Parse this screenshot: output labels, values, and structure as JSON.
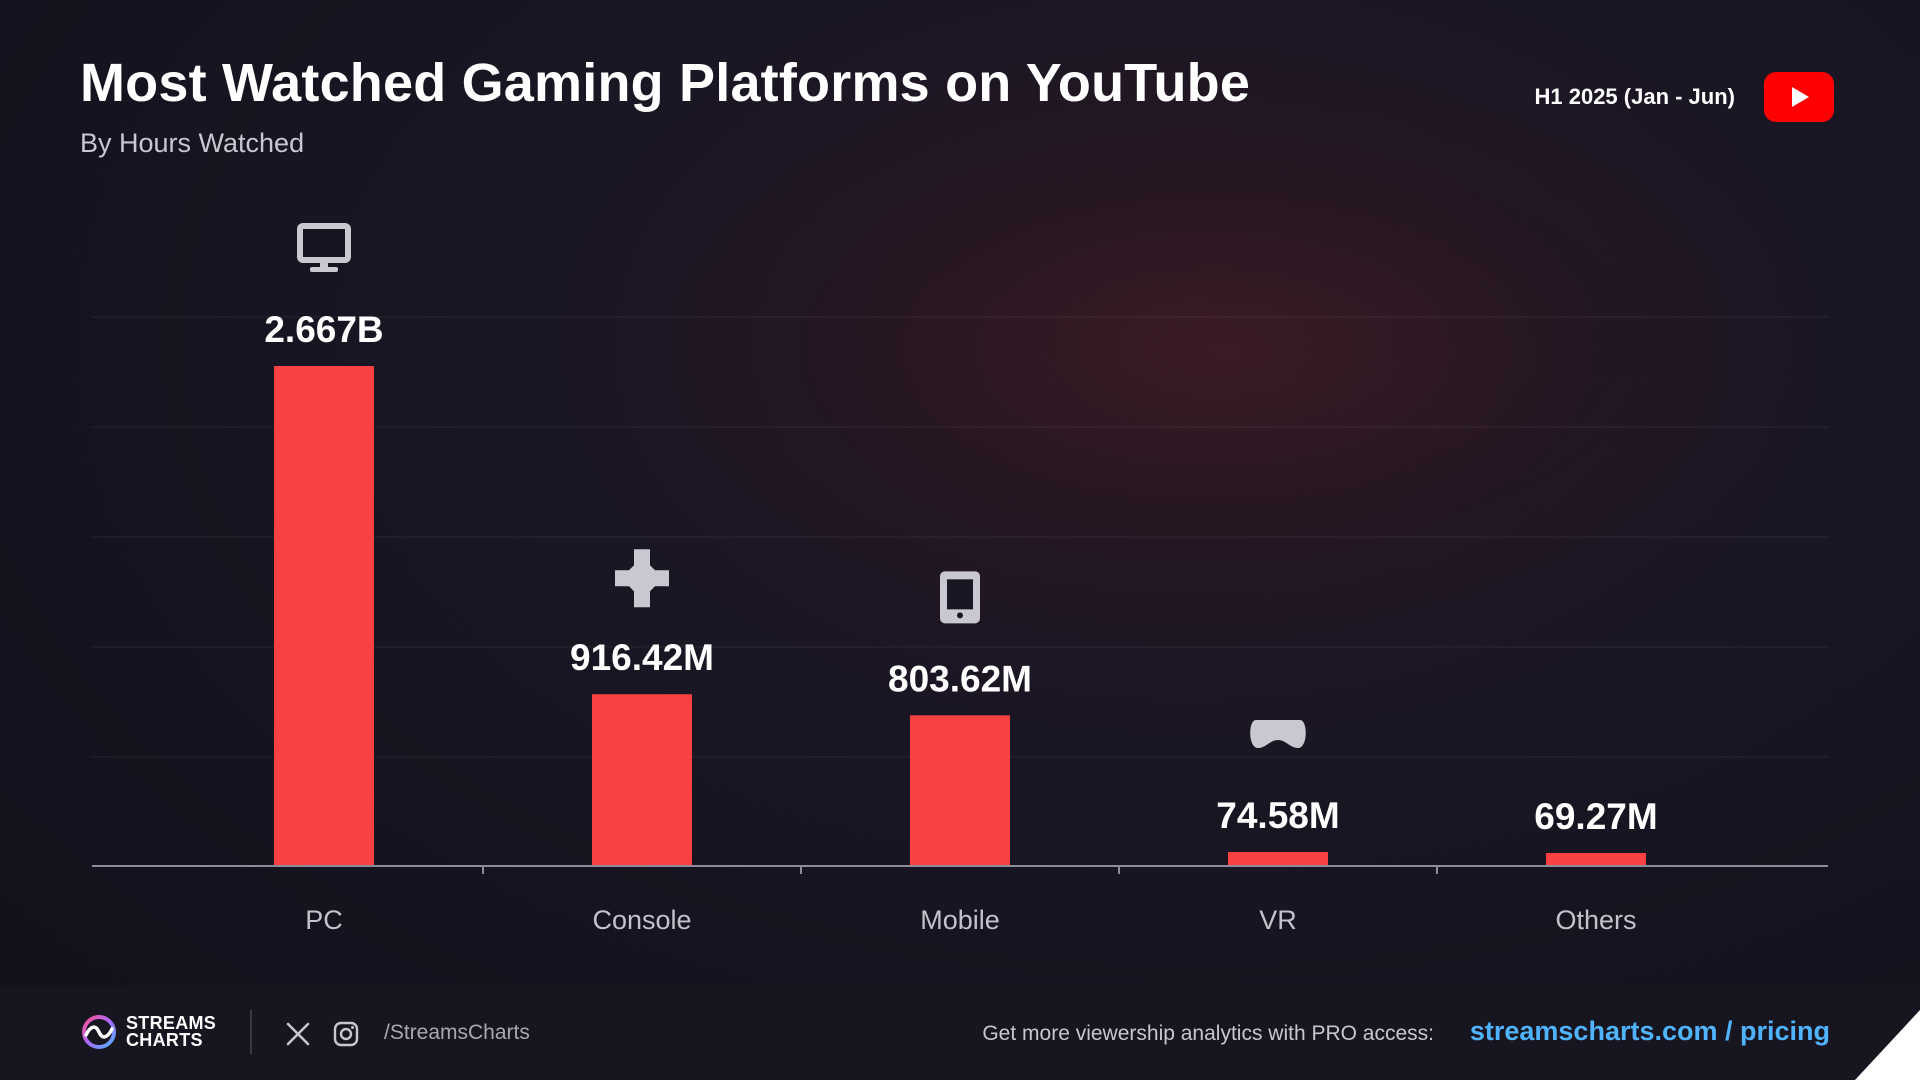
{
  "header": {
    "title": "Most Watched Gaming Platforms on YouTube",
    "subtitle": "By Hours Watched",
    "period": "H1 2025 (Jan - Jun)"
  },
  "chart_data": {
    "type": "bar",
    "categories": [
      "PC",
      "Console",
      "Mobile",
      "VR",
      "Others"
    ],
    "values": [
      2667000000,
      916420000,
      803620000,
      74580000,
      69270000
    ],
    "value_labels": [
      "2.667B",
      "916.42M",
      "803.62M",
      "74.58M",
      "69.27M"
    ],
    "category_icons": [
      "monitor-icon",
      "gamepad-icon",
      "smartphone-icon",
      "vr-headset-icon",
      ""
    ],
    "xlabel": "",
    "ylabel": "",
    "ylim": [
      0,
      2700000000
    ],
    "grid": true,
    "bar_color": "#f94144"
  },
  "footer": {
    "logo_line1": "STREAMS",
    "logo_line2": "CHARTS",
    "handle": "/StreamsCharts",
    "cta_text": "Get more viewership analytics with PRO access:",
    "cta_link": "streamscharts.com / pricing"
  },
  "colors": {
    "accent": "#f94144",
    "link": "#4fb3ff",
    "youtube_red": "#ff0000",
    "icon_gray": "#c9c8d0"
  }
}
